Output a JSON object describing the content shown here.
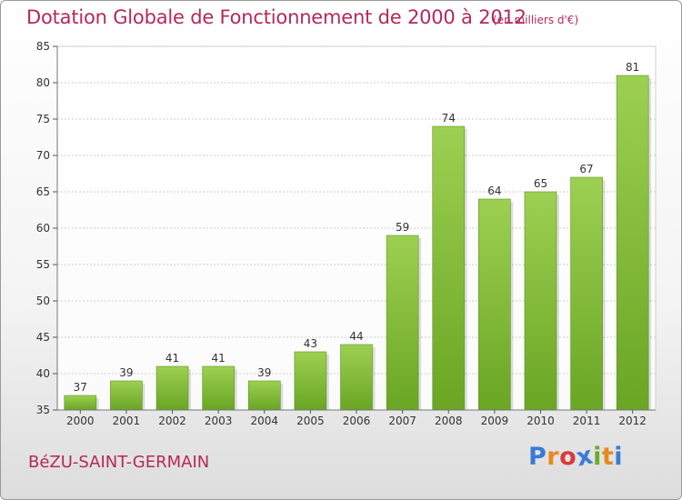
{
  "title": "Dotation Globale de Fonctionnement de 2000 à 2012",
  "subtitle": "(en milliers d'€)",
  "place_name": "BéZU-SAINT-GERMAIN",
  "logo": {
    "text": "Proxiti",
    "letters": [
      {
        "ch": "P",
        "color": "#3a7bd5"
      },
      {
        "ch": "r",
        "color": "#e8891d"
      },
      {
        "ch": "o",
        "color": "#d93b3b"
      },
      {
        "ch": "x",
        "color": "#3a7bd5"
      },
      {
        "ch": "i",
        "color": "#6aaa2e"
      },
      {
        "ch": "t",
        "color": "#e8891d"
      },
      {
        "ch": "i",
        "color": "#3a7bd5"
      }
    ]
  },
  "chart_data": {
    "type": "bar",
    "title": "Dotation Globale de Fonctionnement de 2000 à 2012",
    "subtitle": "(en milliers d'€)",
    "categories": [
      "2000",
      "2001",
      "2002",
      "2003",
      "2004",
      "2005",
      "2006",
      "2007",
      "2008",
      "2009",
      "2010",
      "2011",
      "2012"
    ],
    "values": [
      37,
      39,
      41,
      41,
      39,
      43,
      44,
      59,
      74,
      64,
      65,
      67,
      81
    ],
    "ylim": [
      35,
      85
    ],
    "yticks": [
      35,
      40,
      45,
      50,
      55,
      60,
      65,
      70,
      75,
      80,
      85
    ],
    "grid": "horizontal dotted",
    "colors": {
      "bar_top": "#9dd052",
      "bar_bottom": "#6aa524",
      "bar_edge": "#5c961c",
      "axis_text": "#333333"
    }
  }
}
